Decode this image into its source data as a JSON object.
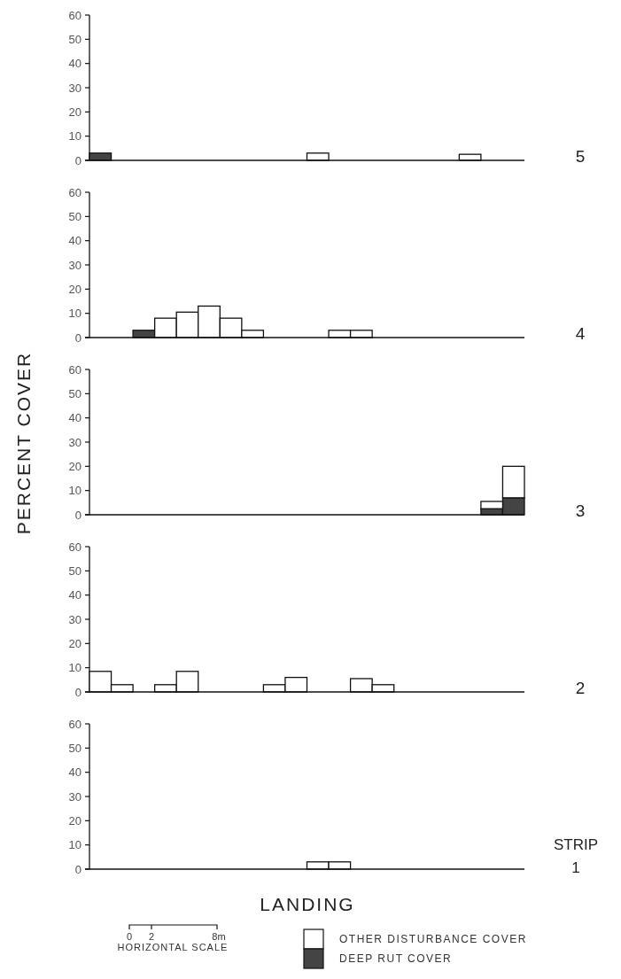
{
  "chart_data": [
    {
      "type": "bar",
      "stacked": true,
      "categories": [
        null,
        null,
        null,
        null,
        null,
        null,
        null,
        null,
        null,
        null,
        null,
        null,
        null,
        null,
        null,
        null,
        null,
        null,
        null,
        null
      ],
      "ylim": [
        0,
        60
      ],
      "yticks": [
        0,
        10,
        20,
        30,
        40,
        50,
        60
      ],
      "tick_labels": "y",
      "grid": false,
      "annotations": [
        "5"
      ],
      "series": [
        {
          "color": "#444444",
          "values": [
            3,
            null,
            null,
            null,
            null,
            null,
            null,
            null,
            null,
            null,
            null,
            null,
            null,
            null,
            null,
            null,
            null,
            null,
            null,
            null
          ]
        },
        {
          "color": "#ffffff",
          "values": [
            null,
            null,
            null,
            null,
            null,
            null,
            null,
            null,
            null,
            null,
            3,
            null,
            null,
            null,
            null,
            null,
            null,
            2.5,
            null,
            null
          ]
        }
      ]
    },
    {
      "type": "bar",
      "stacked": true,
      "categories": [
        null,
        null,
        null,
        null,
        null,
        null,
        null,
        null,
        null,
        null,
        null,
        null,
        null,
        null,
        null,
        null,
        null,
        null,
        null,
        null
      ],
      "ylim": [
        0,
        60
      ],
      "yticks": [
        0,
        10,
        20,
        30,
        40,
        50,
        60
      ],
      "tick_labels": "y",
      "grid": false,
      "annotations": [
        "4"
      ],
      "series": [
        {
          "color": "#444444",
          "values": [
            null,
            null,
            3,
            null,
            null,
            null,
            null,
            null,
            null,
            null,
            null,
            null,
            null,
            null,
            null,
            null,
            null,
            null,
            null,
            null
          ]
        },
        {
          "color": "#ffffff",
          "values": [
            null,
            null,
            null,
            8,
            10.5,
            13,
            8,
            3,
            null,
            null,
            null,
            3,
            3,
            null,
            null,
            null,
            null,
            null,
            null,
            null
          ]
        }
      ]
    },
    {
      "type": "bar",
      "stacked": true,
      "categories": [
        null,
        null,
        null,
        null,
        null,
        null,
        null,
        null,
        null,
        null,
        null,
        null,
        null,
        null,
        null,
        null,
        null,
        null,
        null,
        null
      ],
      "ylim": [
        0,
        60
      ],
      "yticks": [
        0,
        10,
        20,
        30,
        40,
        50,
        60
      ],
      "tick_labels": "y",
      "grid": false,
      "ylabel": "PERCENT COVER",
      "annotations": [
        "3"
      ],
      "series": [
        {
          "color": "#444444",
          "values": [
            null,
            null,
            null,
            null,
            null,
            null,
            null,
            null,
            null,
            null,
            null,
            null,
            null,
            null,
            null,
            null,
            null,
            null,
            2.5,
            7
          ]
        },
        {
          "color": "#ffffff",
          "values": [
            null,
            null,
            null,
            null,
            null,
            null,
            null,
            null,
            null,
            null,
            null,
            null,
            null,
            null,
            null,
            null,
            null,
            null,
            3,
            13
          ]
        }
      ]
    },
    {
      "type": "bar",
      "stacked": true,
      "categories": [
        null,
        null,
        null,
        null,
        null,
        null,
        null,
        null,
        null,
        null,
        null,
        null,
        null,
        null,
        null,
        null,
        null,
        null,
        null,
        null
      ],
      "ylim": [
        0,
        60
      ],
      "yticks": [
        0,
        10,
        20,
        30,
        40,
        50,
        60
      ],
      "tick_labels": "y",
      "grid": false,
      "annotations": [
        "2"
      ],
      "series": [
        {
          "color": "#ffffff",
          "values": [
            8.5,
            3,
            null,
            3,
            8.5,
            null,
            null,
            null,
            3,
            6,
            null,
            null,
            5.5,
            3,
            null,
            null,
            null,
            null,
            null,
            null
          ]
        }
      ]
    },
    {
      "type": "bar",
      "stacked": true,
      "categories": [
        null,
        null,
        null,
        null,
        null,
        null,
        null,
        null,
        null,
        null,
        null,
        null,
        null,
        null,
        null,
        null,
        null,
        null,
        null,
        null
      ],
      "ylim": [
        0,
        60
      ],
      "yticks": [
        0,
        10,
        20,
        30,
        40,
        50,
        60
      ],
      "tick_labels": "y",
      "grid": false,
      "xlabel": "LANDING",
      "legend": "bottom",
      "annotations": [
        "STRIP",
        "1",
        "0",
        "2",
        "8m",
        "HORIZONTAL SCALE"
      ],
      "series": [
        {
          "name": "DEEP RUT COVER",
          "color": "#444444",
          "values": [
            null,
            null,
            null,
            null,
            null,
            null,
            null,
            null,
            null,
            null,
            null,
            null,
            null,
            null,
            null,
            null,
            null,
            null,
            null,
            null
          ]
        },
        {
          "name": "OTHER DISTURBANCE COVER",
          "color": "#ffffff",
          "values": [
            null,
            null,
            null,
            null,
            null,
            null,
            null,
            null,
            null,
            null,
            3,
            3,
            null,
            null,
            null,
            null,
            null,
            null,
            null,
            null
          ]
        }
      ]
    }
  ]
}
